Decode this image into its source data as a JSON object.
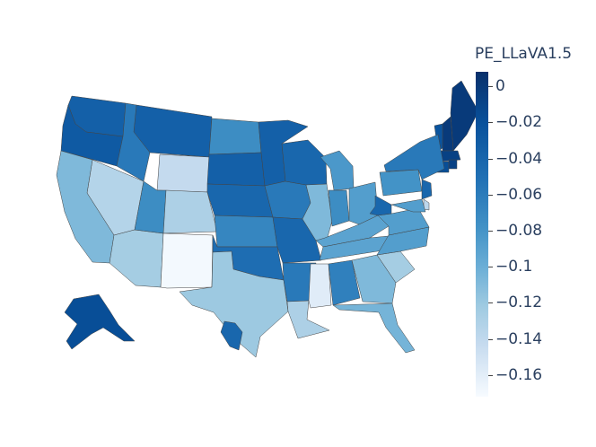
{
  "colorbar": {
    "title": "PE_LLaVA1.5",
    "ticks": [
      "0",
      "−0.02",
      "−0.04",
      "−0.06",
      "−0.08",
      "−0.1",
      "−0.12",
      "−0.14",
      "−0.16"
    ],
    "tick_values": [
      0,
      -0.02,
      -0.04,
      -0.06,
      -0.08,
      -0.1,
      -0.12,
      -0.14,
      -0.16
    ],
    "range": [
      -0.172,
      0.008
    ],
    "colorscale": [
      "#f7fbff",
      "#c6dbef",
      "#9ecae1",
      "#6baed6",
      "#4292c6",
      "#2171b5",
      "#08519c",
      "#08306b"
    ]
  },
  "state_values": {
    "ME": 0.0,
    "NH": 0.0,
    "MA": -0.005,
    "CT": -0.015,
    "RI": -0.005,
    "VT": -0.02,
    "WA": -0.03,
    "OR": -0.025,
    "MT": -0.03,
    "ID": -0.05,
    "WY": -0.145,
    "NV": -0.135,
    "CA": -0.105,
    "AZ": -0.125,
    "UT": -0.065,
    "CO": -0.13,
    "NM": -0.17,
    "ND": -0.065,
    "SD": -0.03,
    "NE": -0.035,
    "KS": -0.06,
    "OK": -0.04,
    "TX": -0.12,
    "MN": -0.03,
    "IA": -0.05,
    "MO": -0.035,
    "AR": -0.05,
    "LA": -0.13,
    "WI": -0.035,
    "IL": -0.105,
    "MI": -0.075,
    "IN": -0.065,
    "OH": -0.08,
    "KY": -0.085,
    "TN": -0.085,
    "MS": -0.16,
    "AL": -0.055,
    "GA": -0.105,
    "FL": -0.1,
    "SC": -0.125,
    "NC": -0.08,
    "VA": -0.08,
    "WV": -0.035,
    "PA": -0.07,
    "NY": -0.05,
    "NJ": -0.035,
    "DE": -0.14,
    "MD": -0.08,
    "AK": -0.015,
    "HI": -0.035
  }
}
